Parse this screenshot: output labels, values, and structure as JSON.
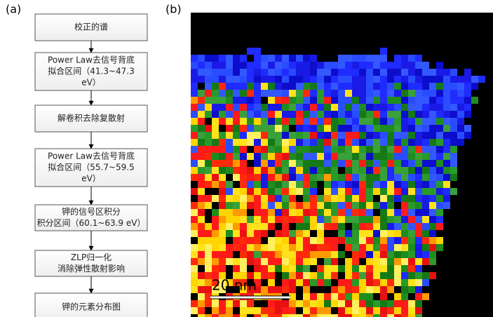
{
  "panels": {
    "a": "(a)",
    "b": "(b)"
  },
  "flowchart": {
    "steps": [
      [
        "校正的谱"
      ],
      [
        "Power Law去信号背底",
        "拟合区间（41.3~47.3",
        "eV）"
      ],
      [
        "解卷积去除复散射"
      ],
      [
        "Power Law去信号背底",
        "拟合区间（55.7~59.5",
        "eV）"
      ],
      [
        "钾的信号区积分",
        "积分区间（60.1~63.9 eV）"
      ],
      [
        "ZLP归一化",
        "消除弹性散射影响"
      ],
      [
        "钾的元素分布图"
      ]
    ]
  },
  "image": {
    "scale_bar": "20 nm"
  }
}
